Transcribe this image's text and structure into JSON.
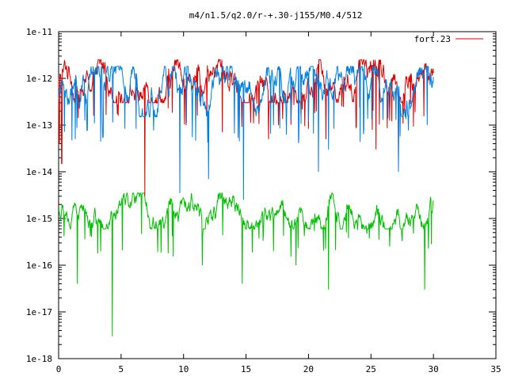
{
  "chart_data": {
    "type": "line",
    "title": "m4/n1.5/q2.0/r-+.30-j155/M0.4/512",
    "xlabel": "",
    "ylabel": "",
    "xlim": [
      0,
      35
    ],
    "ylim": [
      1e-18,
      1e-11
    ],
    "yscale": "log",
    "grid": false,
    "legend_position": "top-right",
    "x_ticks": [
      "0",
      "5",
      "10",
      "15",
      "20",
      "25",
      "30",
      "35"
    ],
    "y_ticks": [
      "1e-18",
      "1e-17",
      "1e-16",
      "1e-15",
      "1e-14",
      "1e-13",
      "1e-12",
      "1e-11"
    ],
    "series": [
      {
        "name": "fort.23",
        "color": "#dd0000",
        "x_range": [
          0,
          30
        ],
        "typical_range": [
          3e-13,
          2.5e-12
        ],
        "dips": [
          [
            0.05,
            4e-14
          ],
          [
            0.25,
            1.5e-14
          ],
          [
            6.9,
            3e-15
          ],
          [
            10.2,
            1e-13
          ],
          [
            13.1,
            7e-14
          ],
          [
            16.8,
            5e-14
          ],
          [
            21.4,
            5e-14
          ],
          [
            25.4,
            3e-14
          ],
          [
            27.2,
            1.5e-14
          ]
        ]
      },
      {
        "name": "",
        "color": "#0080e0",
        "x_range": [
          0,
          30
        ],
        "typical_range": [
          1.5e-13,
          1.8e-12
        ],
        "dips": [
          [
            3.5,
            1e-13
          ],
          [
            9.7,
            3.5e-15
          ],
          [
            12.0,
            7e-15
          ],
          [
            14.8,
            2.5e-15
          ],
          [
            20.8,
            1e-14
          ],
          [
            21.6,
            3e-14
          ],
          [
            27.2,
            1e-14
          ],
          [
            29.5,
            1e-13
          ]
        ]
      },
      {
        "name": "",
        "color": "#00c000",
        "x_range": [
          0,
          30
        ],
        "typical_range": [
          6e-16,
          3.5e-15
        ],
        "dips": [
          [
            1.5,
            4e-17
          ],
          [
            4.3,
            3e-18
          ],
          [
            11.5,
            1e-16
          ],
          [
            14.7,
            4e-17
          ],
          [
            17.2,
            2e-16
          ],
          [
            19.0,
            1e-16
          ],
          [
            21.6,
            3e-17
          ],
          [
            26.5,
            2.5e-16
          ],
          [
            29.3,
            3e-17
          ]
        ]
      }
    ]
  }
}
